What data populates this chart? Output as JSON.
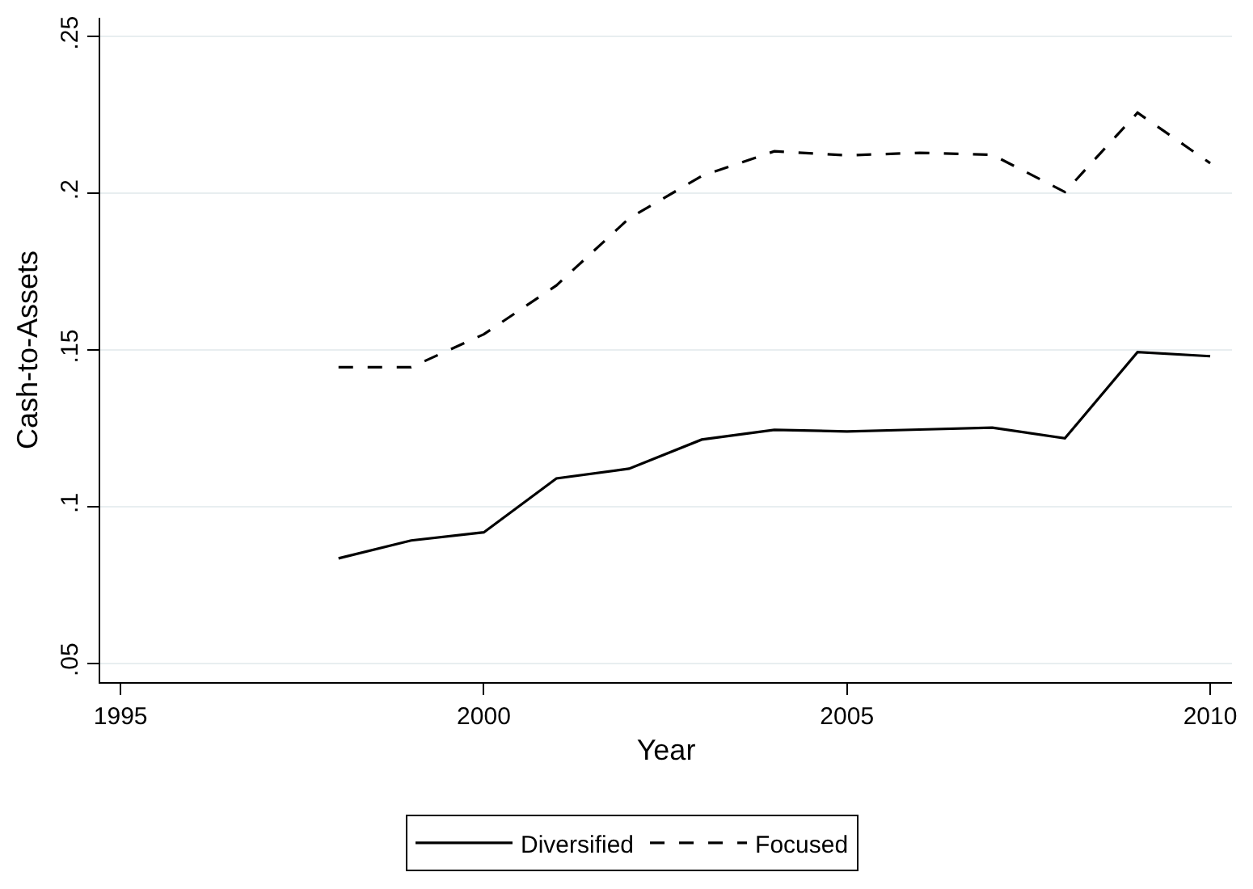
{
  "chart_data": {
    "type": "line",
    "xlabel": "Year",
    "ylabel": "Cash-to-Assets",
    "x": [
      1998,
      1999,
      2000,
      2001,
      2002,
      2003,
      2004,
      2005,
      2006,
      2007,
      2008,
      2009,
      2010
    ],
    "series": [
      {
        "name": "Diversified",
        "color": "#000000",
        "line_style": "solid",
        "values": [
          0.0835,
          0.0892,
          0.0918,
          0.109,
          0.1121,
          0.1214,
          0.1245,
          0.124,
          0.1246,
          0.1252,
          0.1218,
          0.1493,
          0.148
        ]
      },
      {
        "name": "Focused",
        "color": "#000000",
        "line_style": "dashed",
        "values": [
          0.1445,
          0.1445,
          0.155,
          0.1706,
          0.192,
          0.2055,
          0.2134,
          0.2121,
          0.2129,
          0.2123,
          0.2004,
          0.2257,
          0.2096
        ]
      }
    ],
    "xlim": [
      1994.72,
      2010.3
    ],
    "xticks": [
      1995,
      2000,
      2005,
      2010
    ],
    "ylim": [
      0.044,
      0.256
    ],
    "yticks": [
      {
        "value": 0.05,
        "label": ".05"
      },
      {
        "value": 0.1,
        "label": ".1"
      },
      {
        "value": 0.15,
        "label": ".15"
      },
      {
        "value": 0.2,
        "label": ".2"
      },
      {
        "value": 0.25,
        "label": ".25"
      }
    ],
    "grid": "y",
    "legend": "bottom",
    "marker": "none"
  }
}
